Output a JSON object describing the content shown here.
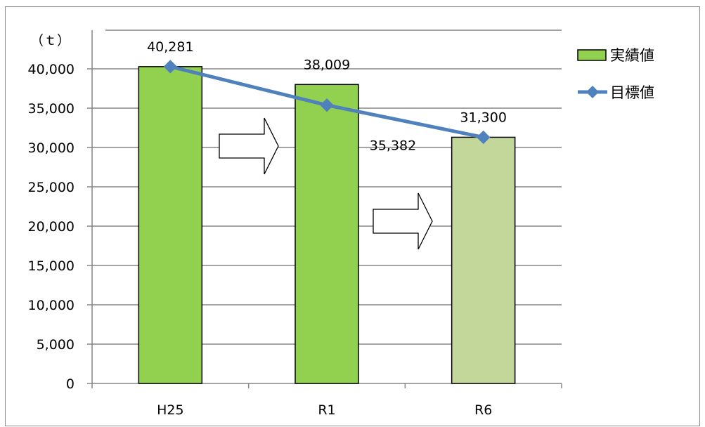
{
  "chart_data": {
    "type": "bar",
    "title": "",
    "unit_label": "（ｔ）",
    "xlabel": "",
    "ylabel": "",
    "categories": [
      "H25",
      "R1",
      "R6"
    ],
    "ylim": [
      0,
      40000
    ],
    "yticks": [
      0,
      5000,
      10000,
      15000,
      20000,
      25000,
      30000,
      35000,
      40000
    ],
    "ytick_labels": [
      "0",
      "5,000",
      "10,000",
      "15,000",
      "20,000",
      "25,000",
      "30,000",
      "35,000",
      "40,000"
    ],
    "grid": true,
    "legend_position": "top-right",
    "series": [
      {
        "name": "実績値",
        "kind": "bar",
        "values": [
          40281,
          38009,
          31300
        ],
        "labels": [
          "40,281",
          "38,009",
          "31,300"
        ],
        "colors": [
          "#92d050",
          "#92d050",
          "#c4d79b"
        ]
      },
      {
        "name": "目標値",
        "kind": "line",
        "marker": "diamond",
        "values": [
          40281,
          35382,
          31300
        ],
        "labels": [
          "",
          "35,382",
          ""
        ],
        "color": "#4f81bd"
      }
    ],
    "annotations": [
      {
        "type": "arrow-right",
        "between": [
          "H25",
          "R1"
        ]
      },
      {
        "type": "arrow-right",
        "between": [
          "R1",
          "R6"
        ]
      }
    ]
  }
}
